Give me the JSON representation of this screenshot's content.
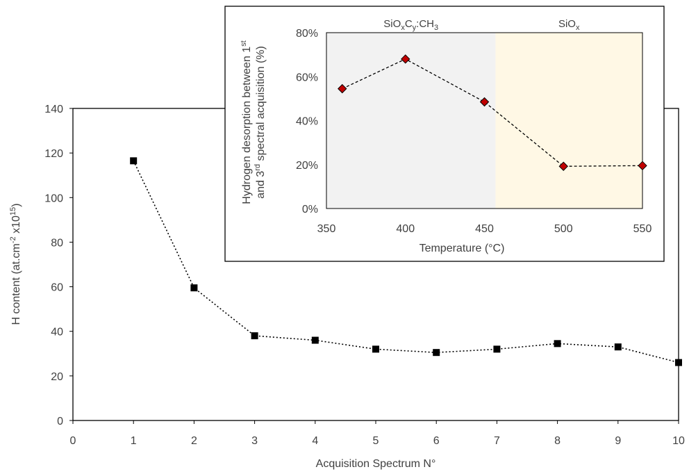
{
  "chart_data": [
    {
      "type": "line",
      "xlabel": "Acquisition Spectrum N°",
      "ylabel_main": "H content (at.cm",
      "ylabel_sup1": "-2",
      "ylabel_mid": " x10",
      "ylabel_sup2": "15",
      "ylabel_end": ")",
      "xlim": [
        0,
        10
      ],
      "ylim": [
        0,
        140
      ],
      "xticks": [
        0,
        1,
        2,
        3,
        4,
        5,
        6,
        7,
        8,
        9,
        10
      ],
      "yticks": [
        0,
        20,
        40,
        60,
        80,
        100,
        120,
        140
      ],
      "series": [
        {
          "x": [
            1,
            2,
            3,
            4,
            5,
            6,
            7,
            8,
            9,
            10
          ],
          "y": [
            116.5,
            59.5,
            38,
            36,
            32,
            30.5,
            32,
            34.5,
            33,
            26
          ],
          "color": "#000000",
          "marker": "square",
          "line_style": "dotted"
        }
      ]
    },
    {
      "type": "line",
      "xlabel": "Temperature (°C)",
      "ylabel_line1_main": "Hydrogen desorption between 1",
      "ylabel_line1_sup": "st",
      "ylabel_line2_main": "and 3",
      "ylabel_line2_sup": "rd",
      "ylabel_line2_end": " spectral acquisition (%)",
      "xlim": [
        350,
        550
      ],
      "ylim": [
        0,
        80
      ],
      "xticks": [
        350,
        400,
        450,
        500,
        550
      ],
      "yticks": [
        "0%",
        "20%",
        "40%",
        "60%",
        "80%"
      ],
      "ytick_values": [
        0,
        20,
        40,
        60,
        80
      ],
      "regions": [
        {
          "label_parts": [
            "SiO",
            "x",
            "C",
            "y",
            ":CH",
            "3"
          ],
          "x_range": [
            350,
            457
          ],
          "color": "#f2f2f2"
        },
        {
          "label_parts": [
            "SiO",
            "x"
          ],
          "x_range": [
            457,
            550
          ],
          "color": "#fff8e5"
        }
      ],
      "series": [
        {
          "x": [
            360,
            400,
            450,
            500,
            550
          ],
          "y": [
            54.5,
            68,
            48.5,
            19.2,
            19.5
          ],
          "color": "#c00000",
          "marker": "diamond",
          "line_style": "dashed"
        }
      ]
    }
  ]
}
